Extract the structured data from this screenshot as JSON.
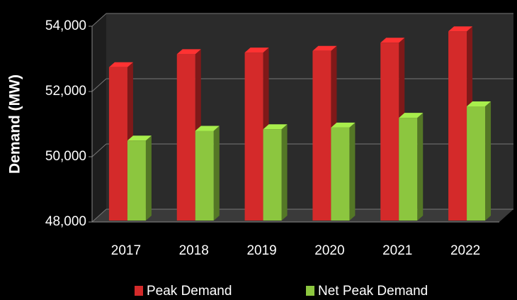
{
  "chart_data": {
    "type": "bar3d",
    "y_label": "Demand (MW)",
    "categories": [
      "2017",
      "2018",
      "2019",
      "2020",
      "2021",
      "2022"
    ],
    "series": [
      {
        "name": "Peak Demand",
        "color": "#d42a2a",
        "values": [
          52700,
          53100,
          53150,
          53200,
          53450,
          53800
        ]
      },
      {
        "name": "Net Peak Demand",
        "color": "#8cc63f",
        "values": [
          50450,
          50750,
          50800,
          50850,
          51150,
          51500
        ]
      }
    ],
    "ylim": [
      48000,
      54000
    ],
    "yticks": [
      {
        "value": 48000,
        "label": "48,000"
      },
      {
        "value": 50000,
        "label": "50,000"
      },
      {
        "value": 52000,
        "label": "52,000"
      },
      {
        "value": 54000,
        "label": "54,000"
      }
    ],
    "grid": true,
    "legend": "bottom"
  }
}
